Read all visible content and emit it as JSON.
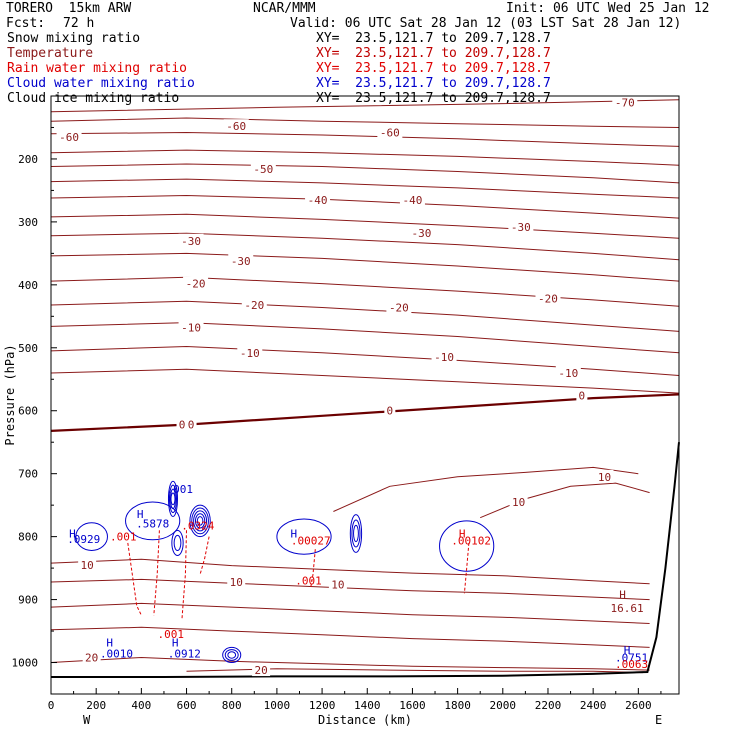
{
  "header": {
    "model": "TORERO  15km ARW",
    "center": "NCAR/MMM",
    "init": "Init: 06 UTC Wed 25 Jan 12",
    "fcst_label": "Fcst:",
    "fcst_value": "72 h",
    "valid": "Valid: 06 UTC Sat 28 Jan 12 (03 LST Sat 28 Jan 12)",
    "colors": {
      "text": "#000000"
    }
  },
  "legend": [
    {
      "name": "Snow mixing ratio",
      "range": "XY=  23.5,121.7 to 209.7,128.7",
      "name_color": "#000000",
      "range_color": "#000000"
    },
    {
      "name": "Temperature",
      "range": "XY=  23.5,121.7 to 209.7,128.7",
      "name_color": "#8b1a1a",
      "range_color": "#c00000"
    },
    {
      "name": "Rain water mixing ratio",
      "range": "XY=  23.5,121.7 to 209.7,128.7",
      "name_color": "#e00000",
      "range_color": "#e00000"
    },
    {
      "name": "Cloud water mixing ratio",
      "range": "XY=  23.5,121.7 to 209.7,128.7",
      "name_color": "#0000cc",
      "range_color": "#0000cc"
    },
    {
      "name": "Cloud ice mixing ratio",
      "range": "XY=  23.5,121.7 to 209.7,128.7",
      "name_color": "#000000",
      "range_color": "#000000"
    }
  ],
  "chart_data": {
    "type": "line",
    "xlabel": "Distance (km)",
    "ylabel": "Pressure (hPa)",
    "xlim": [
      0,
      2780
    ],
    "ylim": [
      1050,
      100
    ],
    "y_inverted": true,
    "x_ticks": [
      0,
      200,
      400,
      600,
      800,
      1000,
      1200,
      1400,
      1600,
      1800,
      2000,
      2200,
      2400,
      2600
    ],
    "y_ticks": [
      200,
      300,
      400,
      500,
      600,
      700,
      800,
      900,
      1000
    ],
    "x_end_labels": {
      "left": "W",
      "right": "E"
    },
    "colors": {
      "temperature": "#8b1a1a",
      "zero_isotherm": "#6b0000",
      "rain": "#e00000",
      "cloud_water": "#0000cc",
      "terrain": "#000000"
    },
    "terrain": {
      "x": [
        0,
        500,
        1000,
        1500,
        2000,
        2400,
        2640,
        2680,
        2720,
        2760,
        2780
      ],
      "p": [
        1023,
        1023,
        1022,
        1022,
        1021,
        1018,
        1015,
        960,
        850,
        720,
        650
      ]
    },
    "isotherms": [
      {
        "label": "-70",
        "x": [
          0,
          1000,
          2000,
          2780
        ],
        "p": [
          125,
          118,
          112,
          106
        ]
      },
      {
        "label": "-60",
        "x": [
          0,
          600,
          1200,
          1800,
          2400,
          2780
        ],
        "p": [
          140,
          135,
          140,
          144,
          148,
          150
        ]
      },
      {
        "label": "-60",
        "x": [
          0,
          600,
          1200,
          1800,
          2400,
          2780
        ],
        "p": [
          160,
          158,
          162,
          168,
          176,
          180
        ]
      },
      {
        "label": "",
        "x": [
          0,
          600,
          1200,
          1800,
          2400,
          2780
        ],
        "p": [
          190,
          186,
          190,
          196,
          204,
          210
        ]
      },
      {
        "label": "-50",
        "x": [
          0,
          600,
          1200,
          1800,
          2400,
          2780
        ],
        "p": [
          212,
          208,
          212,
          220,
          230,
          238
        ]
      },
      {
        "label": "",
        "x": [
          0,
          600,
          1200,
          1800,
          2400,
          2780
        ],
        "p": [
          236,
          232,
          238,
          246,
          256,
          262
        ]
      },
      {
        "label": "-40",
        "x": [
          0,
          600,
          1200,
          1800,
          2400,
          2780
        ],
        "p": [
          262,
          258,
          264,
          274,
          286,
          294
        ]
      },
      {
        "label": "",
        "x": [
          0,
          600,
          1200,
          1800,
          2400,
          2780
        ],
        "p": [
          292,
          288,
          296,
          306,
          318,
          326
        ]
      },
      {
        "label": "-30",
        "x": [
          0,
          600,
          1200,
          1800,
          2400,
          2780
        ],
        "p": [
          322,
          318,
          326,
          336,
          350,
          360
        ]
      },
      {
        "label": "-30",
        "x": [
          0,
          600,
          1200,
          1800,
          2400,
          2780
        ],
        "p": [
          354,
          350,
          358,
          370,
          384,
          394
        ]
      },
      {
        "label": "-20",
        "x": [
          0,
          600,
          1200,
          1800,
          2400,
          2780
        ],
        "p": [
          394,
          388,
          398,
          410,
          424,
          434
        ]
      },
      {
        "label": "-20",
        "x": [
          0,
          600,
          1200,
          1800,
          2400,
          2780
        ],
        "p": [
          432,
          426,
          436,
          448,
          464,
          474
        ]
      },
      {
        "label": "-10",
        "x": [
          0,
          600,
          1200,
          1800,
          2400,
          2780
        ],
        "p": [
          466,
          460,
          470,
          482,
          498,
          508
        ]
      },
      {
        "label": "-10",
        "x": [
          0,
          600,
          1200,
          1800,
          2400,
          2780
        ],
        "p": [
          505,
          498,
          508,
          520,
          534,
          544
        ]
      },
      {
        "label": "",
        "x": [
          0,
          600,
          1200,
          1800,
          2400,
          2780
        ],
        "p": [
          540,
          534,
          544,
          554,
          564,
          572
        ]
      },
      {
        "label": "0",
        "x": [
          0,
          600,
          1200,
          1800,
          2400,
          2780
        ],
        "p": [
          632,
          622,
          608,
          594,
          580,
          574
        ],
        "bold": true
      },
      {
        "label": "10",
        "x": [
          1250,
          1500,
          1800,
          2100,
          2400,
          2600
        ],
        "p": [
          760,
          720,
          705,
          698,
          690,
          700
        ]
      },
      {
        "label": "10",
        "x": [
          1900,
          2100,
          2300,
          2500,
          2650
        ],
        "p": [
          770,
          740,
          720,
          715,
          730
        ]
      },
      {
        "label": "10",
        "x": [
          0,
          400,
          800,
          1200,
          1600,
          2000,
          2400,
          2650
        ],
        "p": [
          842,
          836,
          846,
          852,
          858,
          862,
          870,
          875
        ]
      },
      {
        "label": "10",
        "x": [
          0,
          400,
          800,
          1200,
          1600,
          2000,
          2400,
          2650
        ],
        "p": [
          872,
          868,
          874,
          880,
          886,
          890,
          896,
          900
        ]
      },
      {
        "label": "",
        "x": [
          0,
          400,
          800,
          1200,
          1600,
          2000,
          2400,
          2650
        ],
        "p": [
          912,
          906,
          912,
          918,
          924,
          928,
          934,
          938
        ]
      },
      {
        "label": "",
        "x": [
          0,
          400,
          800,
          1200,
          1600,
          2000,
          2400,
          2650
        ],
        "p": [
          948,
          944,
          950,
          956,
          962,
          966,
          972,
          976
        ]
      },
      {
        "label": "20",
        "x": [
          0,
          400,
          800,
          1200,
          1600,
          2000,
          2400,
          2650
        ],
        "p": [
          1000,
          992,
          998,
          1002,
          1006,
          1008,
          1010,
          1012
        ]
      },
      {
        "label": "20",
        "x": [
          600,
          1000,
          1500,
          2000,
          2400,
          2620
        ],
        "p": [
          1014,
          1010,
          1012,
          1014,
          1014,
          1016
        ]
      }
    ],
    "temperature_labels": [
      {
        "text": "-70",
        "x": 2540,
        "p": 110
      },
      {
        "text": "-60",
        "x": 80,
        "p": 165
      },
      {
        "text": "-60",
        "x": 820,
        "p": 148
      },
      {
        "text": "-60",
        "x": 1500,
        "p": 158
      },
      {
        "text": "-50",
        "x": 940,
        "p": 216
      },
      {
        "text": "-40",
        "x": 1180,
        "p": 265
      },
      {
        "text": "-40",
        "x": 1600,
        "p": 265
      },
      {
        "text": "-30",
        "x": 620,
        "p": 330
      },
      {
        "text": "-30",
        "x": 1640,
        "p": 318
      },
      {
        "text": "-30",
        "x": 2080,
        "p": 308
      },
      {
        "text": "-30",
        "x": 840,
        "p": 362
      },
      {
        "text": "-20",
        "x": 640,
        "p": 398
      },
      {
        "text": "-20",
        "x": 900,
        "p": 432
      },
      {
        "text": "-20",
        "x": 1540,
        "p": 436
      },
      {
        "text": "-20",
        "x": 2200,
        "p": 422
      },
      {
        "text": "-10",
        "x": 620,
        "p": 468
      },
      {
        "text": "-10",
        "x": 880,
        "p": 508
      },
      {
        "text": "-10",
        "x": 1740,
        "p": 515
      },
      {
        "text": "-10",
        "x": 2290,
        "p": 540
      },
      {
        "text": "0",
        "x": 580,
        "p": 622
      },
      {
        "text": "0",
        "x": 620,
        "p": 622
      },
      {
        "text": "0",
        "x": 1500,
        "p": 600
      },
      {
        "text": "0",
        "x": 2350,
        "p": 576
      },
      {
        "text": "10",
        "x": 2450,
        "p": 705
      },
      {
        "text": "10",
        "x": 2070,
        "p": 745
      },
      {
        "text": "10",
        "x": 160,
        "p": 845
      },
      {
        "text": "10",
        "x": 820,
        "p": 872
      },
      {
        "text": "10",
        "x": 1270,
        "p": 876
      },
      {
        "text": "20",
        "x": 180,
        "p": 992
      },
      {
        "text": "20",
        "x": 930,
        "p": 1012
      }
    ],
    "markers": [
      {
        "text": "H",
        "x": 95,
        "p": 795,
        "color": "#0000cc"
      },
      {
        "text": ".0929",
        "x": 145,
        "p": 804,
        "color": "#0000cc"
      },
      {
        "text": ".001",
        "x": 320,
        "p": 800,
        "color": "#e00000"
      },
      {
        "text": "H",
        "x": 395,
        "p": 764,
        "color": "#0000cc"
      },
      {
        "text": ".5878",
        "x": 450,
        "p": 779,
        "color": "#0000cc"
      },
      {
        "text": ".001",
        "x": 570,
        "p": 724,
        "color": "#0000cc"
      },
      {
        "text": ".0324",
        "x": 650,
        "p": 782,
        "color": "#e00000"
      },
      {
        "text": "H",
        "x": 1075,
        "p": 795,
        "color": "#0000cc"
      },
      {
        "text": ".00027",
        "x": 1150,
        "p": 806,
        "color": "#e00000"
      },
      {
        "text": ".001",
        "x": 1140,
        "p": 870,
        "color": "#e00000"
      },
      {
        "text": "H",
        "x": 1820,
        "p": 795,
        "color": "#e00000"
      },
      {
        "text": ".00102",
        "x": 1860,
        "p": 806,
        "color": "#e00000"
      },
      {
        "text": ".001",
        "x": 530,
        "p": 955,
        "color": "#e00000"
      },
      {
        "text": "H",
        "x": 260,
        "p": 968,
        "color": "#0000cc"
      },
      {
        "text": ".0010",
        "x": 290,
        "p": 986,
        "color": "#0000cc"
      },
      {
        "text": "H",
        "x": 550,
        "p": 968,
        "color": "#0000cc"
      },
      {
        "text": ".0912",
        "x": 590,
        "p": 986,
        "color": "#0000cc"
      },
      {
        "text": "H",
        "x": 2530,
        "p": 892,
        "color": "#8b1a1a"
      },
      {
        "text": "16.61",
        "x": 2550,
        "p": 913,
        "color": "#8b1a1a"
      },
      {
        "text": "H",
        "x": 2550,
        "p": 980,
        "color": "#0000cc"
      },
      {
        "text": ".0751",
        "x": 2570,
        "p": 992,
        "color": "#0000cc"
      },
      {
        "text": ".0063",
        "x": 2570,
        "p": 1002,
        "color": "#e00000"
      }
    ],
    "cloud_water_regions": [
      {
        "cx": 180,
        "cp": 800,
        "rx": 70,
        "rp": 22,
        "n": 1
      },
      {
        "cx": 450,
        "cp": 775,
        "rx": 120,
        "rp": 30,
        "n": 1
      },
      {
        "cx": 540,
        "cp": 740,
        "rx": 20,
        "rp": 28,
        "n": 4
      },
      {
        "cx": 660,
        "cp": 775,
        "rx": 45,
        "rp": 25,
        "n": 5
      },
      {
        "cx": 560,
        "cp": 810,
        "rx": 25,
        "rp": 20,
        "n": 2
      },
      {
        "cx": 1120,
        "cp": 800,
        "rx": 120,
        "rp": 28,
        "n": 1
      },
      {
        "cx": 1350,
        "cp": 795,
        "rx": 25,
        "rp": 30,
        "n": 3
      },
      {
        "cx": 1840,
        "cp": 815,
        "rx": 120,
        "rp": 40,
        "n": 1
      },
      {
        "cx": 800,
        "cp": 988,
        "rx": 40,
        "rp": 12,
        "n": 3
      }
    ],
    "rain_streaks": [
      {
        "x": [
          340,
          360,
          380,
          400
        ],
        "p": [
          810,
          860,
          910,
          925
        ]
      },
      {
        "x": [
          480,
          470,
          455
        ],
        "p": [
          790,
          860,
          925
        ]
      },
      {
        "x": [
          600,
          595,
          580
        ],
        "p": [
          790,
          860,
          930
        ]
      },
      {
        "x": [
          700,
          680,
          660
        ],
        "p": [
          800,
          835,
          860
        ]
      },
      {
        "x": [
          1170,
          1160,
          1150
        ],
        "p": [
          820,
          860,
          880
        ]
      },
      {
        "x": [
          1850,
          1840,
          1830
        ],
        "p": [
          810,
          850,
          890
        ]
      }
    ]
  }
}
